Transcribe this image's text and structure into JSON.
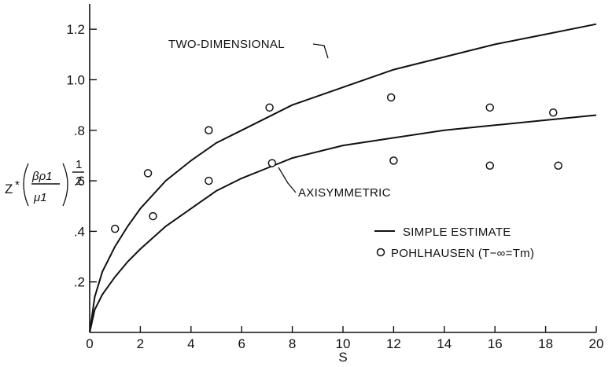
{
  "chart_data": {
    "type": "line",
    "xlabel": "S",
    "ylabel": "Z*(βρ1/μ1)^1/2",
    "xlim": [
      0,
      20
    ],
    "ylim": [
      0,
      1.3
    ],
    "grid": false,
    "legend_placement": "bottom-right",
    "x_ticks": [
      "0",
      "2",
      "4",
      "6",
      "8",
      "10",
      "12",
      "14",
      "16",
      "18",
      "20"
    ],
    "y_ticks": [
      ".2",
      ".4",
      ".6",
      ".8",
      "1.0",
      "1.2"
    ],
    "series": [
      {
        "kind": "line",
        "x": [
          0,
          0.2,
          0.5,
          1,
          1.5,
          2,
          3,
          4,
          5,
          6,
          7,
          8,
          10,
          12,
          14,
          16,
          18,
          20
        ],
        "y": [
          0,
          0.14,
          0.24,
          0.34,
          0.42,
          0.49,
          0.6,
          0.68,
          0.75,
          0.8,
          0.85,
          0.9,
          0.97,
          1.04,
          1.09,
          1.14,
          1.18,
          1.22
        ]
      },
      {
        "kind": "line",
        "x": [
          0,
          0.2,
          0.5,
          1,
          1.5,
          2,
          3,
          4,
          5,
          6,
          7,
          8,
          10,
          12,
          14,
          16,
          18,
          20
        ],
        "y": [
          0,
          0.09,
          0.15,
          0.22,
          0.28,
          0.33,
          0.42,
          0.49,
          0.56,
          0.61,
          0.65,
          0.69,
          0.74,
          0.77,
          0.8,
          0.82,
          0.84,
          0.86
        ]
      },
      {
        "kind": "points",
        "x": [
          1.0,
          2.3,
          4.7,
          7.1,
          11.9,
          15.8,
          18.3
        ],
        "y": [
          0.41,
          0.63,
          0.8,
          0.89,
          0.93,
          0.89,
          0.87
        ]
      },
      {
        "kind": "points",
        "x": [
          2.5,
          4.7,
          7.2,
          12.0,
          15.8,
          18.5
        ],
        "y": [
          0.46,
          0.6,
          0.67,
          0.68,
          0.66,
          0.66
        ]
      }
    ],
    "annotations": {
      "two_dimensional": "TWO-DIMENSIONAL",
      "axisymmetric": "AXISYMMETRIC"
    },
    "legend": {
      "line": "SIMPLE ESTIMATE",
      "points": "POHLHAUSEN (T−∞=Tm)"
    }
  }
}
